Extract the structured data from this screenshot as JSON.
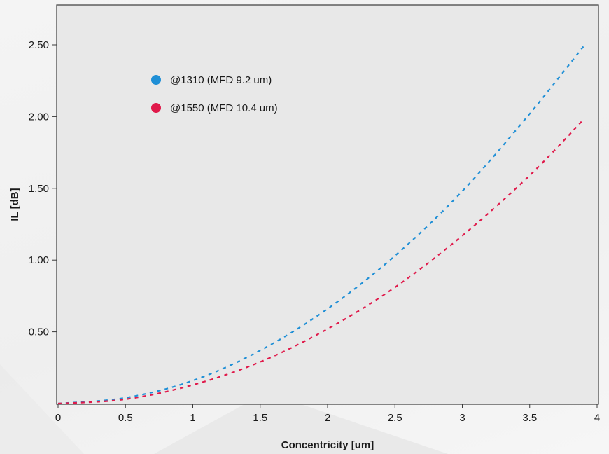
{
  "chart_data": {
    "type": "line",
    "title": "",
    "xlabel": "Concentricity [um]",
    "ylabel": "IL [dB]",
    "xlim": [
      0,
      4
    ],
    "ylim": [
      0,
      2.5
    ],
    "x_ticks": [
      0,
      0.5,
      1,
      1.5,
      2,
      2.5,
      3,
      3.5,
      4
    ],
    "x_tick_labels": [
      "0",
      "0.5",
      "1",
      "1.5",
      "2",
      "2.5",
      "3",
      "3.5",
      "4"
    ],
    "y_ticks": [
      0.5,
      1.0,
      1.5,
      2.0,
      2.5
    ],
    "y_tick_labels": [
      "0.50",
      "1.00",
      "1.50",
      "2.00",
      "2.50"
    ],
    "grid": false,
    "legend_position": "top-left",
    "line_style": "dashed",
    "x": [
      0,
      0.5,
      1,
      1.5,
      2,
      2.5,
      3,
      3.5,
      3.9
    ],
    "series": [
      {
        "name": "@1310 (MFD 9.2 um)",
        "color": "#1f8fd6",
        "values": [
          0.0,
          0.04,
          0.16,
          0.37,
          0.66,
          1.03,
          1.48,
          2.02,
          2.49
        ]
      },
      {
        "name": "@1550 (MFD 10.4 um)",
        "color": "#e0194a",
        "values": [
          0.0,
          0.03,
          0.13,
          0.29,
          0.52,
          0.81,
          1.17,
          1.59,
          1.98
        ]
      }
    ]
  }
}
